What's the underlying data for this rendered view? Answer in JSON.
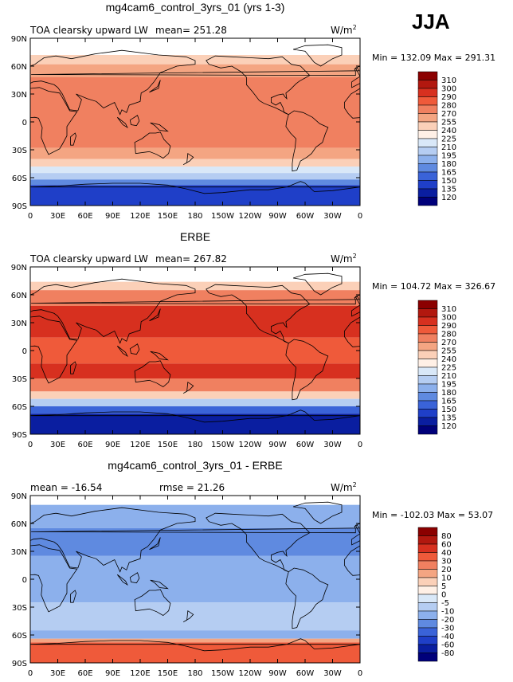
{
  "season": "JJA",
  "units_prefix": "W/m",
  "units_power": "2",
  "lat_labels": [
    "90N",
    "60N",
    "30N",
    "0",
    "30S",
    "60S",
    "90S"
  ],
  "lon_labels": [
    "0",
    "30E",
    "60E",
    "90E",
    "120E",
    "150E",
    "180",
    "150W",
    "120W",
    "90W",
    "60W",
    "30W",
    "0"
  ],
  "panels": [
    {
      "title": "mg4cam6_control_3yrs_01 (yrs 1-3)",
      "left_label": "TOA clearsky upward LW",
      "center_label": "mean= 251.28",
      "minmax": "Min = 132.09 Max = 291.31",
      "levels": [
        "310",
        "300",
        "290",
        "280",
        "270",
        "255",
        "240",
        "225",
        "210",
        "195",
        "180",
        "165",
        "150",
        "135",
        "120"
      ],
      "colors": [
        "#8b0000",
        "#b2180f",
        "#d7301f",
        "#ef5a3a",
        "#f08060",
        "#f4a582",
        "#fbd0b8",
        "#fff0e6",
        "#d9e8f8",
        "#b5cdf2",
        "#8cb0ec",
        "#5f8ae0",
        "#3a63d8",
        "#1f3fc8",
        "#0a1ea0",
        "#00007a"
      ],
      "bands": [
        {
          "lat_top": 90,
          "lat_bot": 72,
          "color": "#ffffff"
        },
        {
          "lat_top": 72,
          "lat_bot": 62,
          "color": "#fbd0b8"
        },
        {
          "lat_top": 62,
          "lat_bot": 48,
          "color": "#f4a582"
        },
        {
          "lat_top": 48,
          "lat_bot": -28,
          "color": "#f08060"
        },
        {
          "lat_top": -28,
          "lat_bot": -40,
          "color": "#f4a582"
        },
        {
          "lat_top": -40,
          "lat_bot": -48,
          "color": "#fbd0b8"
        },
        {
          "lat_top": -48,
          "lat_bot": -55,
          "color": "#d9e8f8"
        },
        {
          "lat_top": -55,
          "lat_bot": -62,
          "color": "#b5cdf2"
        },
        {
          "lat_top": -62,
          "lat_bot": -68,
          "color": "#5f8ae0"
        },
        {
          "lat_top": -68,
          "lat_bot": -90,
          "color": "#1f3fc8"
        }
      ]
    },
    {
      "title": "ERBE",
      "left_label": "TOA clearsky upward LW",
      "center_label": "mean= 267.82",
      "minmax": "Min = 104.72 Max = 326.67",
      "levels": [
        "310",
        "300",
        "290",
        "280",
        "270",
        "255",
        "240",
        "225",
        "210",
        "195",
        "180",
        "165",
        "150",
        "135",
        "120"
      ],
      "colors": [
        "#8b0000",
        "#b2180f",
        "#d7301f",
        "#ef5a3a",
        "#f08060",
        "#f4a582",
        "#fbd0b8",
        "#fff0e6",
        "#d9e8f8",
        "#b5cdf2",
        "#8cb0ec",
        "#5f8ae0",
        "#3a63d8",
        "#1f3fc8",
        "#0a1ea0",
        "#00007a"
      ],
      "bands": [
        {
          "lat_top": 90,
          "lat_bot": 74,
          "color": "#ffffff"
        },
        {
          "lat_top": 74,
          "lat_bot": 65,
          "color": "#fbd0b8"
        },
        {
          "lat_top": 65,
          "lat_bot": 48,
          "color": "#f08060"
        },
        {
          "lat_top": 48,
          "lat_bot": 14,
          "color": "#d7301f"
        },
        {
          "lat_top": 14,
          "lat_bot": -14,
          "color": "#ef5a3a"
        },
        {
          "lat_top": -14,
          "lat_bot": -30,
          "color": "#d7301f"
        },
        {
          "lat_top": -30,
          "lat_bot": -44,
          "color": "#f08060"
        },
        {
          "lat_top": -44,
          "lat_bot": -52,
          "color": "#fbd0b8"
        },
        {
          "lat_top": -52,
          "lat_bot": -60,
          "color": "#b5cdf2"
        },
        {
          "lat_top": -60,
          "lat_bot": -68,
          "color": "#3a63d8"
        },
        {
          "lat_top": -68,
          "lat_bot": -90,
          "color": "#0a1ea0"
        }
      ]
    },
    {
      "title": "mg4cam6_control_3yrs_01 - ERBE",
      "left_label": "mean = -16.54",
      "center_label": "rmse =  21.26",
      "minmax": "Min = -102.03 Max =  53.07",
      "levels": [
        "80",
        "60",
        "40",
        "30",
        "20",
        "10",
        "5",
        "0",
        "-5",
        "-10",
        "-20",
        "-30",
        "-40",
        "-60",
        "-80"
      ],
      "colors": [
        "#8b0000",
        "#b2180f",
        "#d7301f",
        "#ef5a3a",
        "#f08060",
        "#f4a582",
        "#fbd0b8",
        "#fff0e6",
        "#d9e8f8",
        "#b5cdf2",
        "#8cb0ec",
        "#5f8ae0",
        "#3a63d8",
        "#1f3fc8",
        "#0a1ea0",
        "#00007a"
      ],
      "bands": [
        {
          "lat_top": 90,
          "lat_bot": 80,
          "color": "#ffffff"
        },
        {
          "lat_top": 80,
          "lat_bot": 55,
          "color": "#8cb0ec"
        },
        {
          "lat_top": 55,
          "lat_bot": 25,
          "color": "#5f8ae0"
        },
        {
          "lat_top": 25,
          "lat_bot": -25,
          "color": "#8cb0ec"
        },
        {
          "lat_top": -25,
          "lat_bot": -55,
          "color": "#b5cdf2"
        },
        {
          "lat_top": -55,
          "lat_bot": -64,
          "color": "#8cb0ec"
        },
        {
          "lat_top": -64,
          "lat_bot": -68,
          "color": "#f4a582"
        },
        {
          "lat_top": -68,
          "lat_bot": -90,
          "color": "#ef5a3a"
        }
      ]
    }
  ]
}
